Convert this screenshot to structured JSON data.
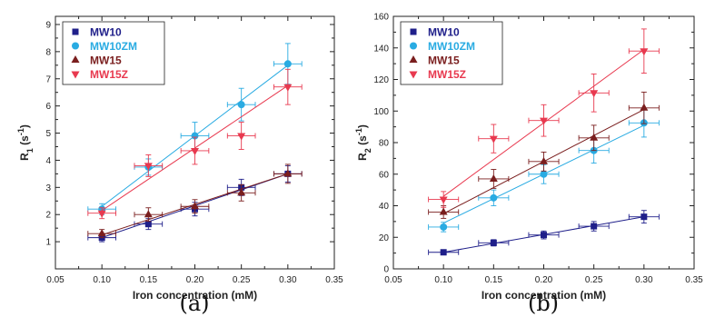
{
  "chart_data": [
    {
      "type": "scatter",
      "panel_label": "(a)",
      "xlabel": "Iron concentration (mM)",
      "ylabel_main": "R",
      "ylabel_sub": "1",
      "ylabel_unit": " (s",
      "ylabel_sup": "-1",
      "ylabel_close": ")",
      "xlim": [
        0.05,
        0.35
      ],
      "ylim": [
        0,
        9.3
      ],
      "xticks": [
        "0.05",
        "0.10",
        "0.15",
        "0.20",
        "0.25",
        "0.30",
        "0.35"
      ],
      "yticks": [
        "1",
        "2",
        "3",
        "4",
        "5",
        "6",
        "7",
        "8",
        "9"
      ],
      "legend_position": "top-left",
      "series": [
        {
          "name": "MW10",
          "color": "#1f1f8a",
          "marker": "square",
          "x": [
            0.1,
            0.15,
            0.2,
            0.25,
            0.3
          ],
          "y": [
            1.15,
            1.65,
            2.2,
            3.0,
            3.5
          ],
          "yerr": [
            0.15,
            0.2,
            0.25,
            0.3,
            0.3
          ],
          "fit": [
            [
              0.1,
              1.15
            ],
            [
              0.3,
              3.5
            ]
          ]
        },
        {
          "name": "MW10ZM",
          "color": "#29abe2",
          "marker": "circle",
          "x": [
            0.1,
            0.15,
            0.2,
            0.25,
            0.3
          ],
          "y": [
            2.2,
            3.75,
            4.9,
            6.05,
            7.55
          ],
          "yerr": [
            0.2,
            0.3,
            0.5,
            0.6,
            0.75
          ],
          "fit": [
            [
              0.1,
              2.3
            ],
            [
              0.3,
              7.5
            ]
          ]
        },
        {
          "name": "MW15",
          "color": "#7a1e1e",
          "marker": "triangle-up",
          "x": [
            0.1,
            0.15,
            0.2,
            0.25,
            0.3
          ],
          "y": [
            1.3,
            2.0,
            2.3,
            2.8,
            3.5
          ],
          "yerr": [
            0.15,
            0.25,
            0.25,
            0.3,
            0.35
          ],
          "fit": [
            [
              0.1,
              1.25
            ],
            [
              0.3,
              3.5
            ]
          ]
        },
        {
          "name": "MW15Z",
          "color": "#e8394f",
          "marker": "triangle-down",
          "x": [
            0.1,
            0.15,
            0.2,
            0.25,
            0.3
          ],
          "y": [
            2.05,
            3.8,
            4.35,
            4.9,
            6.7
          ],
          "yerr": [
            0.2,
            0.4,
            0.5,
            0.5,
            0.65
          ],
          "fit": [
            [
              0.1,
              2.15
            ],
            [
              0.3,
              6.75
            ]
          ]
        }
      ]
    },
    {
      "type": "scatter",
      "panel_label": "(b)",
      "xlabel": "Iron concentration (mM)",
      "ylabel_main": "R",
      "ylabel_sub": "2",
      "ylabel_unit": " (s",
      "ylabel_sup": "-1",
      "ylabel_close": ")",
      "xlim": [
        0.05,
        0.35
      ],
      "ylim": [
        0,
        160
      ],
      "xticks": [
        "0.05",
        "0.10",
        "0.15",
        "0.20",
        "0.25",
        "0.30",
        "0.35"
      ],
      "yticks": [
        "0",
        "20",
        "40",
        "60",
        "80",
        "100",
        "120",
        "140",
        "160"
      ],
      "legend_position": "top-left",
      "series": [
        {
          "name": "MW10",
          "color": "#1f1f8a",
          "marker": "square",
          "x": [
            0.1,
            0.15,
            0.2,
            0.25,
            0.3
          ],
          "y": [
            10.5,
            16.5,
            21.5,
            27,
            33
          ],
          "yerr": [
            1.5,
            2,
            2.5,
            3,
            4
          ],
          "fit": [
            [
              0.1,
              10.5
            ],
            [
              0.3,
              33
            ]
          ]
        },
        {
          "name": "MW10ZM",
          "color": "#29abe2",
          "marker": "circle",
          "x": [
            0.1,
            0.15,
            0.2,
            0.25,
            0.3
          ],
          "y": [
            26.5,
            45,
            60,
            75,
            92.5
          ],
          "yerr": [
            3,
            5,
            6,
            8,
            9
          ],
          "fit": [
            [
              0.1,
              29
            ],
            [
              0.3,
              91
            ]
          ]
        },
        {
          "name": "MW15",
          "color": "#7a1e1e",
          "marker": "triangle-up",
          "x": [
            0.1,
            0.15,
            0.2,
            0.25,
            0.3
          ],
          "y": [
            36,
            57,
            68,
            83,
            102
          ],
          "yerr": [
            4,
            6,
            6,
            8,
            10
          ],
          "fit": [
            [
              0.1,
              35
            ],
            [
              0.3,
              101
            ]
          ]
        },
        {
          "name": "MW15Z",
          "color": "#e8394f",
          "marker": "triangle-down",
          "x": [
            0.1,
            0.15,
            0.2,
            0.25,
            0.3
          ],
          "y": [
            44,
            82.5,
            94,
            111.5,
            138
          ],
          "yerr": [
            5,
            9,
            10,
            12,
            14
          ],
          "fit": [
            [
              0.1,
              46
            ],
            [
              0.3,
              139
            ]
          ]
        }
      ]
    }
  ]
}
